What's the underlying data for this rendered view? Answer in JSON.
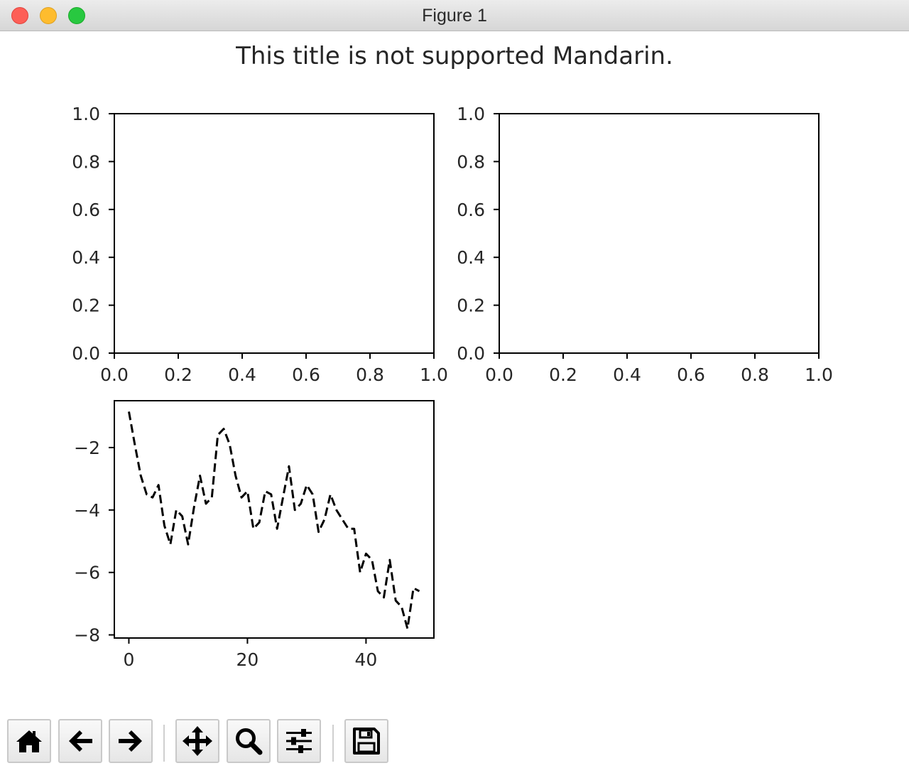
{
  "window": {
    "title": "Figure 1"
  },
  "figure": {
    "suptitle": "This title is not supported Mandarin."
  },
  "toolbar": {
    "buttons": [
      {
        "name": "home-button",
        "icon": "home-icon"
      },
      {
        "name": "back-button",
        "icon": "arrow-left-icon"
      },
      {
        "name": "forward-button",
        "icon": "arrow-right-icon"
      },
      {
        "name": "pan-button",
        "icon": "move-arrows-icon"
      },
      {
        "name": "zoom-button",
        "icon": "magnifier-icon"
      },
      {
        "name": "configure-subplots-button",
        "icon": "sliders-icon"
      },
      {
        "name": "save-button",
        "icon": "floppy-disk-icon"
      }
    ]
  },
  "colors": {
    "line": "#000000",
    "axes": "#000000",
    "text": "#262626"
  },
  "chart_data": [
    {
      "type": "line",
      "title": "",
      "xlabel": "",
      "ylabel": "",
      "xlim": [
        0.0,
        1.0
      ],
      "ylim": [
        0.0,
        1.0
      ],
      "xticks": [
        "0.0",
        "0.2",
        "0.4",
        "0.6",
        "0.8",
        "1.0"
      ],
      "yticks": [
        "0.0",
        "0.2",
        "0.4",
        "0.6",
        "0.8",
        "1.0"
      ],
      "series": [],
      "grid": false
    },
    {
      "type": "line",
      "title": "",
      "xlabel": "",
      "ylabel": "",
      "xlim": [
        0.0,
        1.0
      ],
      "ylim": [
        0.0,
        1.0
      ],
      "xticks": [
        "0.0",
        "0.2",
        "0.4",
        "0.6",
        "0.8",
        "1.0"
      ],
      "yticks": [
        "0.0",
        "0.2",
        "0.4",
        "0.6",
        "0.8",
        "1.0"
      ],
      "series": [],
      "grid": false
    },
    {
      "type": "line",
      "title": "",
      "xlabel": "",
      "ylabel": "",
      "xlim": [
        -2.45,
        51.45
      ],
      "ylim": [
        -8.1,
        -0.5
      ],
      "xticks": [
        "0",
        "20",
        "40"
      ],
      "xtick_values": [
        0,
        20,
        40
      ],
      "yticks": [
        "−2",
        "−4",
        "−6",
        "−8"
      ],
      "ytick_values": [
        -2,
        -4,
        -6,
        -8
      ],
      "grid": false,
      "series": [
        {
          "style": "dashed",
          "color": "#000000",
          "x": [
            0,
            1,
            2,
            3,
            4,
            5,
            6,
            7,
            8,
            9,
            10,
            11,
            12,
            13,
            14,
            15,
            16,
            17,
            18,
            19,
            20,
            21,
            22,
            23,
            24,
            25,
            26,
            27,
            28,
            29,
            30,
            31,
            32,
            33,
            34,
            35,
            36,
            37,
            38,
            39,
            40,
            41,
            42,
            43,
            44,
            45,
            46,
            47,
            48,
            49
          ],
          "values": [
            -0.85,
            -1.9,
            -2.9,
            -3.5,
            -3.6,
            -3.2,
            -4.5,
            -5.1,
            -4.0,
            -4.2,
            -5.1,
            -3.9,
            -2.9,
            -3.8,
            -3.6,
            -1.6,
            -1.4,
            -1.9,
            -2.9,
            -3.6,
            -3.4,
            -4.6,
            -4.4,
            -3.4,
            -3.5,
            -4.6,
            -3.6,
            -2.6,
            -4.0,
            -3.8,
            -3.2,
            -3.5,
            -4.7,
            -4.3,
            -3.5,
            -4.0,
            -4.3,
            -4.6,
            -4.6,
            -6.0,
            -5.4,
            -5.6,
            -6.6,
            -6.8,
            -5.6,
            -6.9,
            -7.1,
            -7.8,
            -6.5,
            -6.6
          ]
        }
      ]
    }
  ]
}
